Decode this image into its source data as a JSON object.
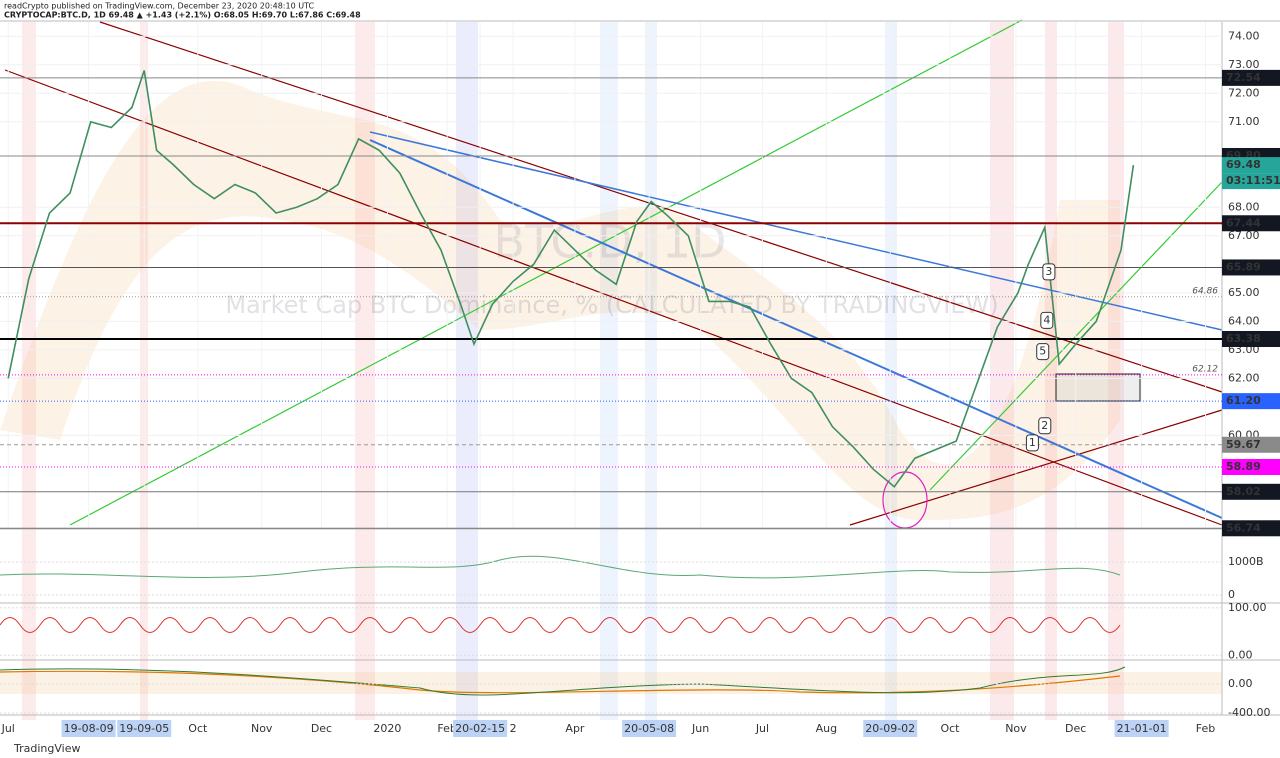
{
  "header": {
    "publisher_line": "readCrypto published on TradingView.com, December 23, 2020 20:48:10 UTC",
    "symbol_line": "CRYPTOCAP:BTC.D, 1D  69.48  ▲ +1.43 (+2.1%)  O:68.05  H:69.70  L:67.86  C:69.48"
  },
  "footer": "TradingView",
  "chart_data": {
    "type": "line",
    "watermark": [
      "BTC.D, 1D",
      "Market Cap BTC Dominance, % (CALCULATED BY TRADINGVIEW)"
    ],
    "x": [
      0,
      10,
      20,
      30,
      40,
      50,
      60,
      66,
      72,
      80,
      90,
      100,
      110,
      120,
      130,
      140,
      150,
      160,
      170,
      180,
      190,
      200,
      210,
      220,
      226,
      235,
      245,
      255,
      265,
      275,
      285,
      295,
      305,
      312,
      320,
      330,
      340,
      350,
      360,
      370,
      380,
      390,
      400,
      410,
      420,
      430,
      440,
      450,
      460,
      470,
      480,
      490,
      495,
      503,
      510,
      518,
      528,
      540,
      546
    ],
    "values": [
      62.0,
      65.5,
      67.8,
      68.5,
      71.0,
      70.8,
      71.5,
      72.8,
      70.0,
      69.5,
      68.8,
      68.3,
      68.8,
      68.5,
      67.8,
      68.0,
      68.3,
      68.8,
      70.4,
      70.0,
      69.2,
      67.8,
      66.5,
      64.5,
      63.2,
      64.6,
      65.4,
      66.0,
      67.2,
      66.5,
      65.8,
      65.3,
      67.5,
      68.2,
      67.7,
      67.0,
      64.7,
      64.7,
      64.5,
      63.2,
      62.0,
      61.5,
      60.3,
      59.6,
      58.8,
      58.2,
      59.2,
      59.5,
      59.8,
      61.8,
      63.8,
      65.0,
      66.0,
      67.3,
      62.5,
      63.2,
      64.0,
      66.5,
      69.48
    ],
    "color": "#3f8f5f",
    "xlim": [
      -4,
      589
    ],
    "ylim": [
      56.75,
      74.5
    ],
    "xticks": [
      {
        "value": 0,
        "label": "Jul"
      },
      {
        "value": 39,
        "label": "19-08-09",
        "highlight": true
      },
      {
        "value": 66,
        "label": "19-09-05",
        "highlight": true
      },
      {
        "value": 92,
        "label": "Oct"
      },
      {
        "value": 123,
        "label": "Nov"
      },
      {
        "value": 152,
        "label": "Dec"
      },
      {
        "value": 184,
        "label": "2020"
      },
      {
        "value": 213,
        "label": "Feb"
      },
      {
        "value": 229,
        "label": "20-02-15",
        "highlight": true
      },
      {
        "value": 245,
        "label": "2"
      },
      {
        "value": 275,
        "label": "Apr"
      },
      {
        "value": 311,
        "label": "20-05-08",
        "highlight": true
      },
      {
        "value": 336,
        "label": "Jun"
      },
      {
        "value": 366,
        "label": "Jul"
      },
      {
        "value": 397,
        "label": "Aug"
      },
      {
        "value": 428,
        "label": "20-09-02",
        "highlight": true
      },
      {
        "value": 457,
        "label": "Oct"
      },
      {
        "value": 489,
        "label": "Nov"
      },
      {
        "value": 518,
        "label": "Dec"
      },
      {
        "value": 550,
        "label": "21-01-01",
        "highlight": true
      },
      {
        "value": 581,
        "label": "Feb"
      }
    ],
    "yticks": [
      {
        "value": 74,
        "label": "74.00"
      },
      {
        "value": 73,
        "label": "73.00"
      },
      {
        "value": 72,
        "label": "72.00"
      },
      {
        "value": 71,
        "label": "71.00"
      },
      {
        "value": 68,
        "label": "68.00"
      },
      {
        "value": 67,
        "label": "67.00"
      },
      {
        "value": 65,
        "label": "65.00"
      },
      {
        "value": 64,
        "label": "64.00"
      },
      {
        "value": 63,
        "label": "63.00"
      },
      {
        "value": 62,
        "label": "62.00"
      },
      {
        "value": 60,
        "label": "60.00"
      }
    ],
    "levels": [
      {
        "value": 72.54,
        "label": "72.54",
        "color": "#888888",
        "bg": "#131722",
        "style": "solid"
      },
      {
        "value": 69.8,
        "label": "69.80",
        "color": "#888888",
        "bg": "#131722",
        "style": "solid"
      },
      {
        "value": 69.48,
        "label": "69.48",
        "color": "#26a69a",
        "bg": "#26a69a",
        "style": "none"
      },
      {
        "value": 67.44,
        "label": "67.44",
        "color": "#8b0000",
        "bg": "#131722",
        "style": "thick"
      },
      {
        "value": 65.89,
        "label": "65.89",
        "color": "#555555",
        "bg": "#131722",
        "style": "solid"
      },
      {
        "value": 63.38,
        "label": "63.38",
        "color": "#000000",
        "bg": "#131722",
        "style": "thick"
      },
      {
        "value": 61.2,
        "label": "61.20",
        "color": "#2962ff",
        "bg": "#2962ff",
        "style": "dotted"
      },
      {
        "value": 59.67,
        "label": "59.67",
        "color": "#999999",
        "bg": "#8a8a8a",
        "style": "dashed"
      },
      {
        "value": 58.89,
        "label": "58.89",
        "color": "#ff00ff",
        "bg": "#ff00ff",
        "style": "dotted"
      },
      {
        "value": 58.02,
        "label": "58.02",
        "color": "#777777",
        "bg": "#131722",
        "style": "solid"
      },
      {
        "value": 56.74,
        "label": "56.74",
        "color": "#777777",
        "bg": "#131722",
        "style": "solid"
      }
    ],
    "countdown": "03:11:51",
    "minor_levels": [
      {
        "value": 64.86,
        "label": "64.86",
        "color": "#999999"
      },
      {
        "value": 62.12,
        "label": "62.12",
        "color": "#ff00ff"
      }
    ],
    "annotations": [
      {
        "text": "1",
        "x": 497,
        "y": 59.7
      },
      {
        "text": "2",
        "x": 503,
        "y": 60.3
      },
      {
        "text": "3",
        "x": 505,
        "y": 65.7
      },
      {
        "text": "4",
        "x": 504,
        "y": 64.0
      },
      {
        "text": "5",
        "x": 502,
        "y": 62.9
      }
    ],
    "panels": [
      {
        "ylim": [
          -150,
          1880
        ],
        "ticks": [
          {
            "value": 1000,
            "label": "1000B"
          },
          0
        ]
      },
      {
        "ylim": [
          -10,
          108
        ],
        "ticks": [
          {
            "value": 100,
            "label": "100.00"
          },
          {
            "value": 0,
            "label": "0.00"
          }
        ]
      },
      {
        "ylim": [
          -495,
          290
        ],
        "ticks": [
          {
            "value": 0,
            "label": "0.00"
          },
          {
            "value": -400,
            "label": "-400.00"
          }
        ]
      }
    ]
  }
}
